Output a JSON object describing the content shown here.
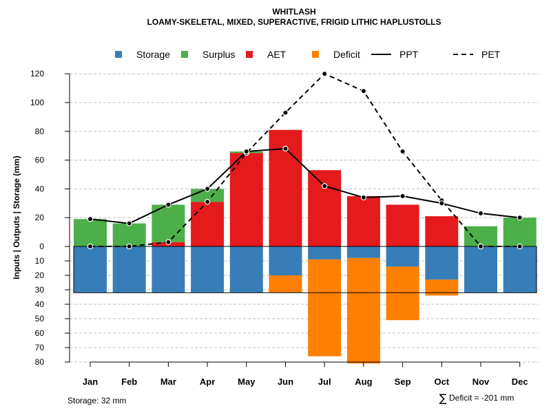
{
  "chart_data": {
    "type": "bar",
    "title": "WHITLASH",
    "subtitle": "LOAMY-SKELETAL, MIXED, SUPERACTIVE, FRIGID LITHIC HAPLUSTOLLS",
    "ylabel": "Inputs | Outputs | Storage    (mm)",
    "ylim": [
      -80,
      120
    ],
    "upper_ticks": [
      0,
      20,
      40,
      60,
      80,
      100,
      120
    ],
    "lower_ticks": [
      10,
      20,
      30,
      40,
      50,
      60,
      70,
      80
    ],
    "categories": [
      "Jan",
      "Feb",
      "Mar",
      "Apr",
      "May",
      "Jun",
      "Jul",
      "Aug",
      "Sep",
      "Oct",
      "Nov",
      "Dec"
    ],
    "series": [
      {
        "name": "AET",
        "color": "#E41A1C",
        "values": [
          0,
          0,
          3,
          31,
          65,
          81,
          53,
          35,
          29,
          21,
          0,
          0
        ]
      },
      {
        "name": "Surplus",
        "color": "#4DAF4A",
        "values": [
          19,
          16,
          26,
          9,
          1,
          0,
          0,
          0,
          0,
          0,
          14,
          20
        ]
      },
      {
        "name": "Storage",
        "color": "#377EB8",
        "values": [
          32,
          32,
          32,
          32,
          32,
          20,
          9,
          8,
          14,
          23,
          32,
          32
        ]
      },
      {
        "name": "Deficit",
        "color": "#FF7F00",
        "values": [
          0,
          0,
          0,
          0,
          0,
          12,
          67,
          73,
          37,
          11,
          0,
          0
        ]
      },
      {
        "name": "PPT",
        "style": "solid",
        "values": [
          19,
          16,
          29,
          40,
          66,
          68,
          42,
          34,
          35,
          30,
          23,
          20
        ]
      },
      {
        "name": "PET",
        "style": "dashed",
        "values": [
          0,
          0,
          3,
          31,
          65,
          93,
          120,
          108,
          66,
          32,
          0,
          0
        ]
      }
    ],
    "storage_capacity": 32,
    "legend": [
      {
        "label": "Storage",
        "kind": "square",
        "color": "#377EB8"
      },
      {
        "label": "Surplus",
        "kind": "square",
        "color": "#4DAF4A"
      },
      {
        "label": "AET",
        "kind": "square",
        "color": "#E41A1C"
      },
      {
        "label": "Deficit",
        "kind": "square",
        "color": "#FF7F00"
      },
      {
        "label": "PPT",
        "kind": "solid-line",
        "color": "#000000"
      },
      {
        "label": "PET",
        "kind": "dashed-line",
        "color": "#000000"
      }
    ],
    "legend_position": "top",
    "grid": true,
    "footnote_left": "Storage: 32 mm",
    "footnote_right_symbol": "∑",
    "footnote_right": "Deficit = -201 mm"
  }
}
